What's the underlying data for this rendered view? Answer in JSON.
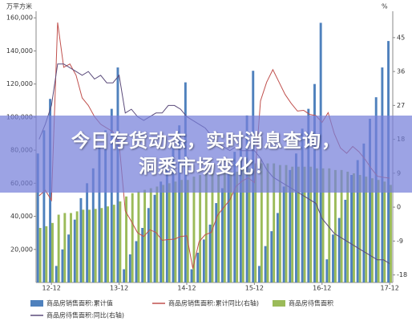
{
  "chart_data": {
    "type": "bar",
    "y_unit": "万平方米",
    "y2_unit": "%",
    "categories": [
      null,
      null,
      "12-12",
      null,
      null,
      null,
      null,
      null,
      null,
      null,
      null,
      null,
      null,
      "13-12",
      null,
      null,
      null,
      null,
      null,
      null,
      null,
      null,
      null,
      null,
      "14-12",
      null,
      null,
      null,
      null,
      null,
      null,
      null,
      null,
      null,
      null,
      "15-12",
      null,
      null,
      null,
      null,
      null,
      null,
      null,
      null,
      null,
      null,
      "16-12",
      null,
      null,
      null,
      null,
      null,
      null,
      null,
      null,
      null,
      null,
      "17-12"
    ],
    "series": [
      {
        "name": "商品房销售面积:累计值",
        "type": "bar",
        "color": "#4f81bd",
        "values": [
          78000,
          92000,
          111000,
          10000,
          20000,
          29000,
          38000,
          51000,
          60000,
          69000,
          82000,
          92000,
          105000,
          130000,
          8000,
          17000,
          25000,
          33000,
          45000,
          53000,
          61000,
          73000,
          83000,
          95000,
          121000,
          8000,
          18000,
          26000,
          35000,
          48000,
          57000,
          66000,
          79000,
          89000,
          101000,
          128000,
          10000,
          22000,
          31000,
          42000,
          58000,
          68000,
          78000,
          93000,
          105000,
          120000,
          157000,
          14000,
          29000,
          39000,
          50000,
          65000,
          74000,
          84000,
          99000,
          112000,
          130000,
          146000
        ]
      },
      {
        "name": "商品房销售面积:累计同比(右轴)",
        "type": "line",
        "axis": "y2",
        "color": "#c0504d",
        "values": [
          3,
          4.5,
          1.8,
          49,
          37.1,
          38,
          35,
          29,
          27,
          24,
          22,
          21,
          20,
          17,
          -1,
          -3.8,
          -6.8,
          -7.8,
          -6,
          -6.7,
          -8.8,
          -8.6,
          -8.5,
          -7.8,
          -7.6,
          -16.3,
          -9.2,
          -7.3,
          -6.7,
          -2.2,
          -0.1,
          1.9,
          5.5,
          6.9,
          7.8,
          6.5,
          28.2,
          33.2,
          36.5,
          33.2,
          29.9,
          27.5,
          25.5,
          25.7,
          24.6,
          24.3,
          22.5,
          25.1,
          19.5,
          15.7,
          14.3,
          16.1,
          14.7,
          12.7,
          10.3,
          8.2,
          7.9,
          7.7
        ]
      },
      {
        "name": "商品房待售面积",
        "type": "bar",
        "color": "#9bbb59",
        "values": [
          33000,
          34000,
          36000,
          41000,
          42000,
          42000,
          43000,
          44000,
          44000,
          44500,
          45000,
          46000,
          47000,
          49000,
          52000,
          54000,
          55000,
          56000,
          57000,
          58000,
          59000,
          60000,
          61000,
          62000,
          62000,
          64000,
          65000,
          66000,
          66000,
          66000,
          66000,
          67000,
          67000,
          68000,
          69000,
          72000,
          72000,
          72000,
          72000,
          71000,
          71000,
          70000,
          70000,
          70000,
          70000,
          69000,
          69000,
          69000,
          68000,
          68000,
          67000,
          66000,
          65000,
          64000,
          63000,
          62000,
          61000,
          59000
        ]
      },
      {
        "name": "商品房待售面积:同比(右轴)",
        "type": "line",
        "axis": "y2",
        "color": "#5a4a7a",
        "values": [
          18,
          22,
          27,
          38,
          38,
          37,
          36,
          35,
          36,
          34,
          35,
          33,
          33,
          35,
          25,
          26,
          24,
          23,
          24,
          25,
          25,
          27,
          27,
          26,
          24,
          23,
          22,
          21,
          19,
          17,
          16,
          15,
          16,
          15,
          15,
          15,
          13,
          10,
          8,
          7,
          6,
          5,
          4,
          3,
          2,
          1,
          -3,
          -5,
          -7,
          -8,
          -9,
          -10,
          -11,
          -12,
          -13,
          -14,
          -14,
          -15
        ]
      }
    ],
    "ylim": [
      0,
      164000
    ],
    "yticks": [
      {
        "value": 20000,
        "label": "20,000"
      },
      {
        "value": 40000,
        "label": "40,000"
      },
      {
        "value": 60000,
        "label": "60,000"
      },
      {
        "value": 80000,
        "label": "80,000"
      },
      {
        "value": 100000,
        "label": "100,000"
      },
      {
        "value": 120000,
        "label": "120,000"
      },
      {
        "value": 140000,
        "label": "140,000"
      },
      {
        "value": 160000,
        "label": "160,000"
      }
    ],
    "y2lim": [
      -20,
      52
    ],
    "y2ticks": [
      -18,
      -9,
      0,
      9,
      18,
      27,
      36,
      45
    ],
    "grid": false
  },
  "banner": {
    "lines": [
      "今日存货动态，实时消息查询，",
      "洞悉市场变化！"
    ]
  }
}
